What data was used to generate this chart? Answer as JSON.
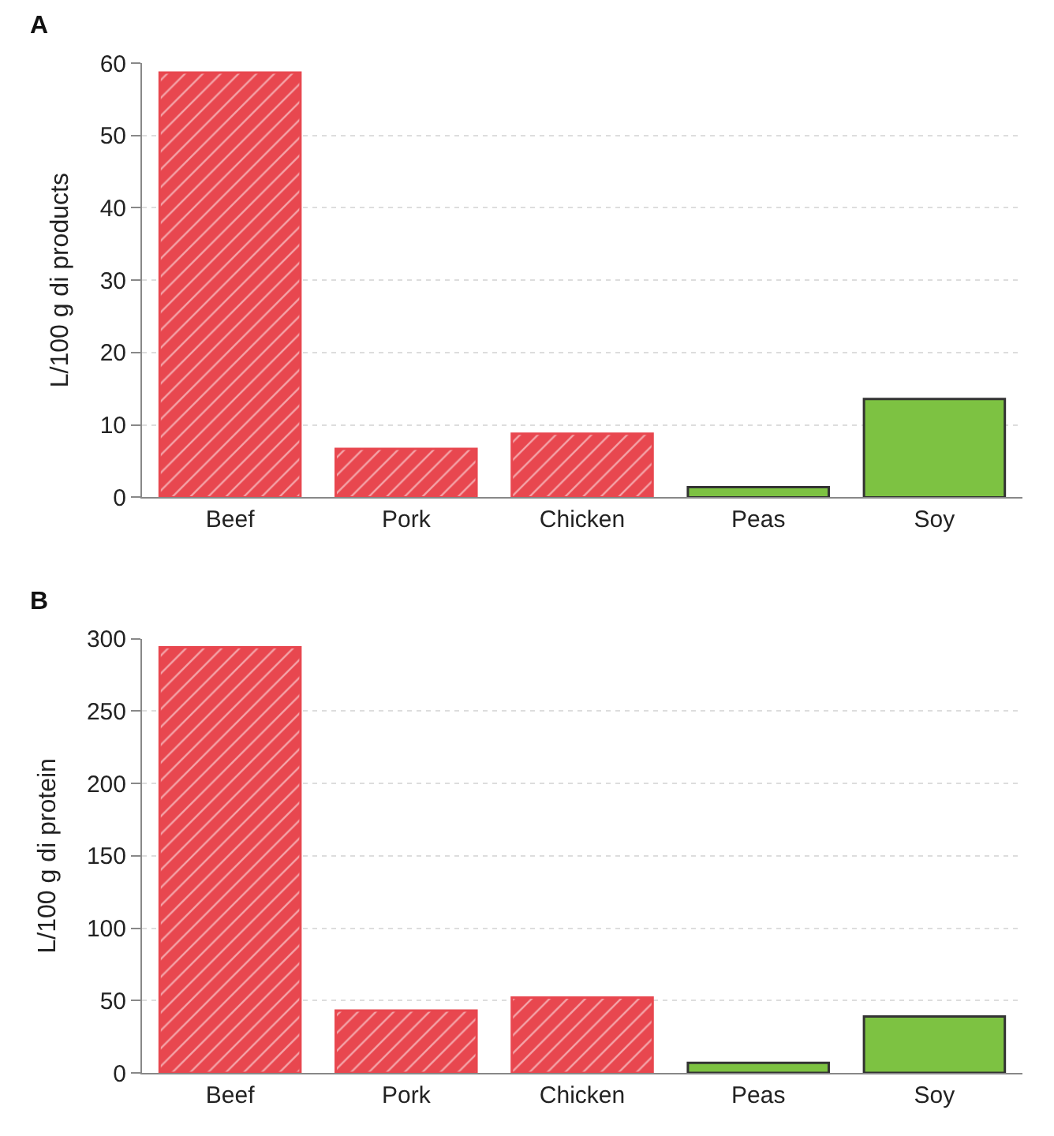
{
  "chart_data": [
    {
      "type": "bar",
      "title": "A",
      "ylabel": "L/100 g di products",
      "categories": [
        "Beef",
        "Pork",
        "Chicken",
        "Peas",
        "Soy"
      ],
      "values": [
        58.7,
        6.7,
        8.8,
        1.4,
        13.6
      ],
      "colors": [
        "#e8474f",
        "#e8474f",
        "#e8474f",
        "#7dc242",
        "#7dc242"
      ],
      "ylim": [
        0,
        60
      ],
      "yticks": [
        0,
        10,
        20,
        30,
        40,
        50,
        60
      ],
      "grid": "y"
    },
    {
      "type": "bar",
      "title": "B",
      "ylabel": "L/100 g di protein",
      "categories": [
        "Beef",
        "Pork",
        "Chicken",
        "Peas",
        "Soy"
      ],
      "values": [
        294,
        43,
        52,
        7,
        39
      ],
      "colors": [
        "#e8474f",
        "#e8474f",
        "#e8474f",
        "#7dc242",
        "#7dc242"
      ],
      "ylim": [
        0,
        300
      ],
      "yticks": [
        0,
        50,
        100,
        150,
        200,
        250,
        300
      ],
      "grid": "y"
    }
  ]
}
